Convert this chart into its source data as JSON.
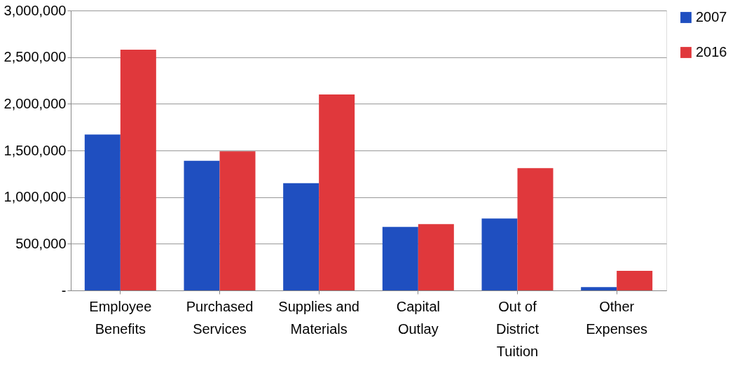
{
  "chart_data": {
    "type": "bar",
    "categories": [
      "Employee Benefits",
      "Purchased Services",
      "Supplies and Materials",
      "Capital Outlay",
      "Out of District Tuition",
      "Other Expenses"
    ],
    "series": [
      {
        "name": "2007",
        "color": "#1f4fc0",
        "values": [
          1670000,
          1390000,
          1150000,
          680000,
          770000,
          35000
        ]
      },
      {
        "name": "2016",
        "color": "#e0383c",
        "values": [
          2580000,
          1490000,
          2100000,
          710000,
          1310000,
          210000
        ]
      }
    ],
    "ylim": [
      0,
      3000000
    ],
    "yticks": [
      {
        "value": 0,
        "label": "-"
      },
      {
        "value": 500000,
        "label": "500,000"
      },
      {
        "value": 1000000,
        "label": "1,000,000"
      },
      {
        "value": 1500000,
        "label": "1,500,000"
      },
      {
        "value": 2000000,
        "label": "2,000,000"
      },
      {
        "value": 2500000,
        "label": "2,500,000"
      },
      {
        "value": 3000000,
        "label": "3,000,000"
      }
    ],
    "grid": "y",
    "legend": "top right"
  }
}
